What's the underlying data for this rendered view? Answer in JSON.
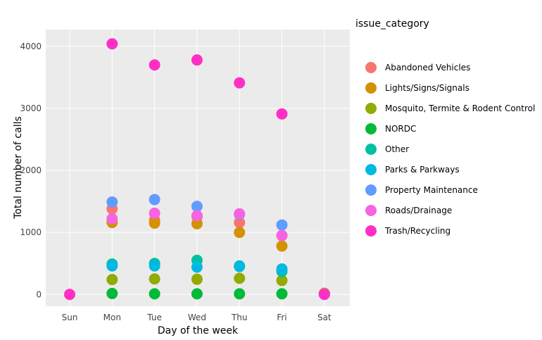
{
  "chart_data": {
    "type": "scatter",
    "xlabel": "Day of the week",
    "ylabel": "Total number of calls",
    "categories": [
      "Sun",
      "Mon",
      "Tue",
      "Wed",
      "Thu",
      "Fri",
      "Sat"
    ],
    "ylim": [
      -190,
      4270
    ],
    "yticks": [
      0,
      1000,
      2000,
      3000,
      4000
    ],
    "grid": true,
    "legend": {
      "title": "issue_category",
      "placement": "right"
    },
    "series": [
      {
        "name": "Abandoned Vehicles",
        "color": "#F8766D",
        "values": [
          null,
          1380,
          1200,
          1250,
          1160,
          950,
          20
        ]
      },
      {
        "name": "Lights/Signs/Signals",
        "color": "#D39200",
        "values": [
          null,
          1160,
          1150,
          1140,
          1000,
          780,
          15
        ]
      },
      {
        "name": "Mosquito, Termite & Rodent Control",
        "color": "#93AA00",
        "values": [
          null,
          240,
          250,
          245,
          260,
          225,
          null
        ]
      },
      {
        "name": "NORDC",
        "color": "#00BA38",
        "values": [
          null,
          15,
          10,
          10,
          10,
          10,
          null
        ]
      },
      {
        "name": "Other",
        "color": "#00C19F",
        "values": [
          null,
          490,
          500,
          550,
          460,
          370,
          5
        ]
      },
      {
        "name": "Parks & Parkways",
        "color": "#00B9E3",
        "values": [
          null,
          460,
          460,
          440,
          450,
          410,
          5
        ]
      },
      {
        "name": "Property Maintenance",
        "color": "#619CFF",
        "values": [
          null,
          1490,
          1530,
          1420,
          1290,
          1120,
          null
        ]
      },
      {
        "name": "Roads/Drainage",
        "color": "#F763E0",
        "values": [
          null,
          1220,
          1310,
          1270,
          1300,
          950,
          5
        ]
      },
      {
        "name": "Trash/Recycling",
        "color": "#FF2FC6",
        "values": [
          0,
          4040,
          3700,
          3780,
          3410,
          2910,
          0
        ]
      }
    ]
  }
}
